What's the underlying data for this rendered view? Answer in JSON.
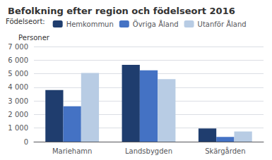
{
  "chart_data": {
    "type": "bar",
    "title": "Befolkning efter region och födelseort 2016",
    "ylabel": "Personer",
    "categories": [
      "Mariehamn",
      "Landsbygden",
      "Skärgården"
    ],
    "series": [
      {
        "name": "Hemkommun",
        "color": "#1f3d6e",
        "values": [
          3800,
          5650,
          970
        ]
      },
      {
        "name": "Övriga Åland",
        "color": "#4472c4",
        "values": [
          2600,
          5250,
          350
        ]
      },
      {
        "name": "Utanför Åland",
        "color": "#b8cce4",
        "values": [
          5050,
          4600,
          750
        ]
      }
    ],
    "legend_title": "Födelseort:",
    "legend": "upper left",
    "ylim": [
      0,
      7000
    ],
    "yticks": [
      0,
      {
        "value": 1000,
        "label": "1 000"
      },
      {
        "value": 2000,
        "label": "2 000"
      },
      {
        "value": 3000,
        "label": "3 000"
      },
      {
        "value": 4000,
        "label": "4 000"
      },
      {
        "value": 5000,
        "label": "5 000"
      },
      {
        "value": 6000,
        "label": "6 000"
      },
      {
        "value": 7000,
        "label": "7 000"
      }
    ],
    "grid": true
  }
}
